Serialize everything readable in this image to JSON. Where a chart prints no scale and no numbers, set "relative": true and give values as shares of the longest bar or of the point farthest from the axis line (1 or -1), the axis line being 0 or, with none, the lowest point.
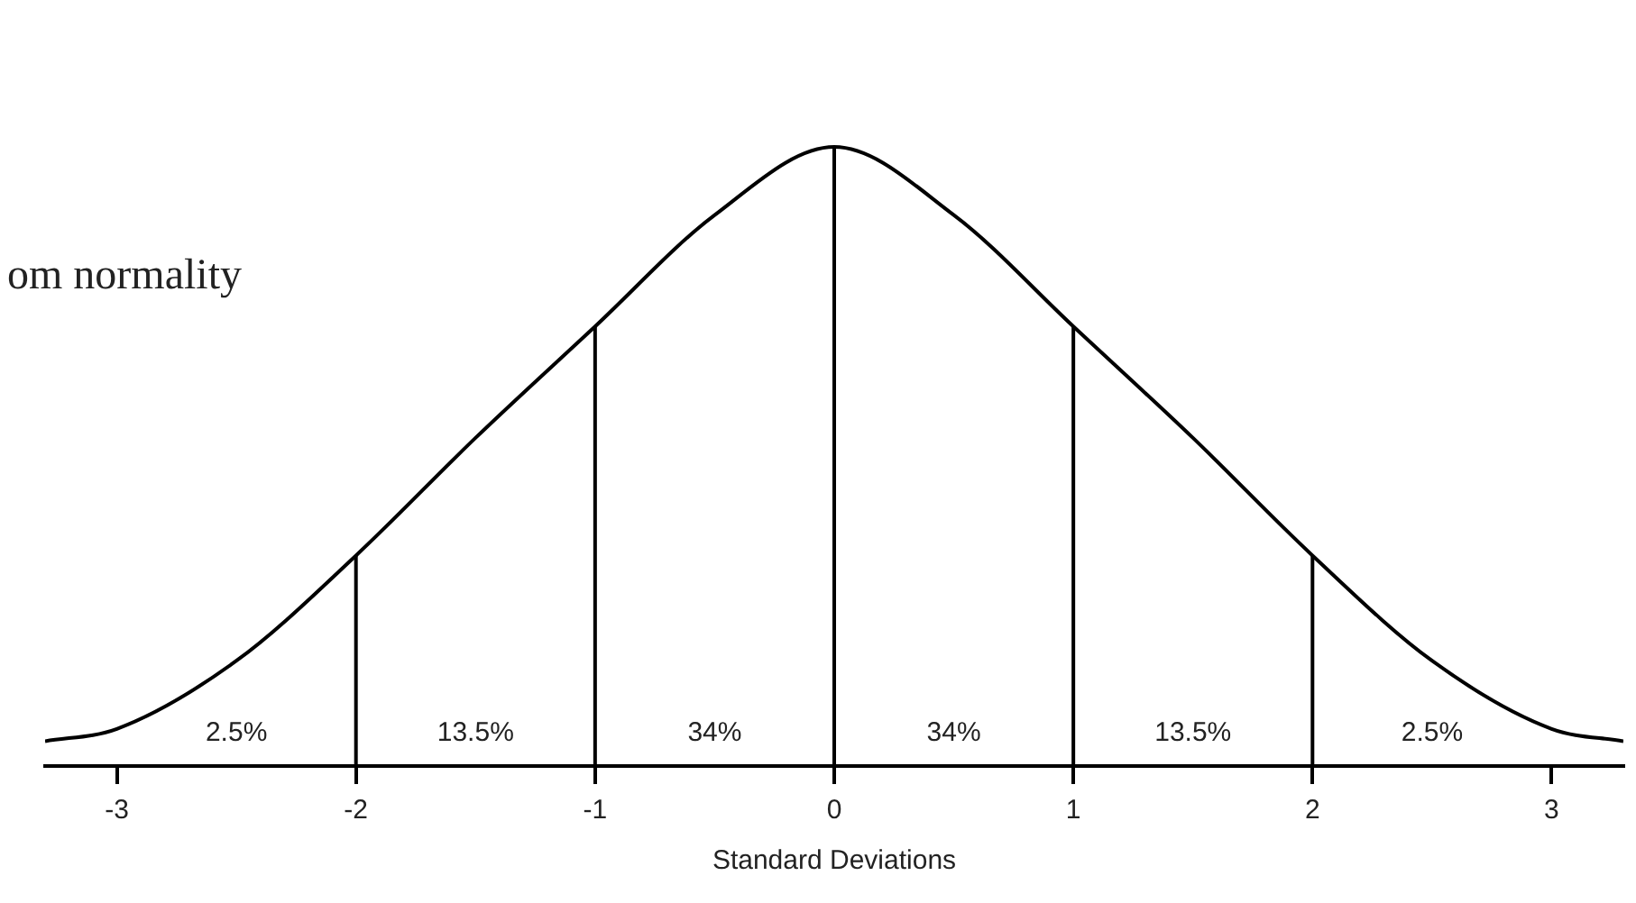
{
  "chart_data": {
    "type": "line",
    "xlabel": "Standard Deviations",
    "relative": true,
    "x": [
      -3.3,
      -3,
      -2.5,
      -2,
      -1.5,
      -1,
      -0.5,
      0,
      0.5,
      1,
      1.5,
      2,
      2.5,
      3,
      3.3
    ],
    "series": [
      {
        "color": "#000000",
        "values": [
          0.04,
          0.06,
          0.17,
          0.34,
          0.53,
          0.71,
          0.89,
          1,
          0.89,
          0.71,
          0.53,
          0.34,
          0.17,
          0.06,
          0.04
        ]
      }
    ],
    "xlim": [
      -3.3,
      3.3
    ],
    "xticks": [
      -3,
      -2,
      -1,
      0,
      1,
      2,
      3
    ],
    "ref_lines": [
      {
        "axis": "x",
        "value": -2
      },
      {
        "axis": "x",
        "value": -1
      },
      {
        "axis": "x",
        "value": 0
      },
      {
        "axis": "x",
        "value": 1
      },
      {
        "axis": "x",
        "value": 2
      }
    ],
    "annotations": [
      "2.5%",
      "13.5%",
      "34%",
      "34%",
      "13.5%",
      "2.5%",
      "om normality"
    ],
    "grid": false,
    "legend": false,
    "marker": "none",
    "line_style": "solid"
  }
}
